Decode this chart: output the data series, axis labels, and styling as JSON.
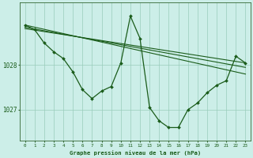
{
  "background_color": "#cceee8",
  "grid_color": "#99ccbb",
  "line_color": "#1a5c1a",
  "marker_color": "#1a5c1a",
  "title": "Graphe pression niveau de la mer (hPa)",
  "ytick_positions": [
    1027,
    1028
  ],
  "ylim": [
    1026.3,
    1029.4
  ],
  "xlim": [
    -0.5,
    23.5
  ],
  "x_ticks": [
    0,
    1,
    2,
    3,
    4,
    5,
    6,
    7,
    8,
    9,
    10,
    11,
    12,
    13,
    14,
    15,
    16,
    17,
    18,
    19,
    20,
    21,
    22,
    23
  ],
  "series_main": [
    1028.9,
    1028.8,
    1028.5,
    1028.3,
    1028.15,
    1027.85,
    1027.45,
    1027.25,
    1027.42,
    1027.52,
    1028.05,
    1029.1,
    1028.6,
    1027.05,
    1026.75,
    1026.6,
    1026.6,
    1027.0,
    1027.15,
    1027.38,
    1027.55,
    1027.65,
    1028.2,
    1028.05
  ],
  "trend1_x": [
    0,
    23
  ],
  "trend1_y": [
    1028.9,
    1027.8
  ],
  "trend2_x": [
    0,
    23
  ],
  "trend2_y": [
    1028.85,
    1027.95
  ],
  "trend3_x": [
    0,
    23
  ],
  "trend3_y": [
    1028.82,
    1028.05
  ]
}
